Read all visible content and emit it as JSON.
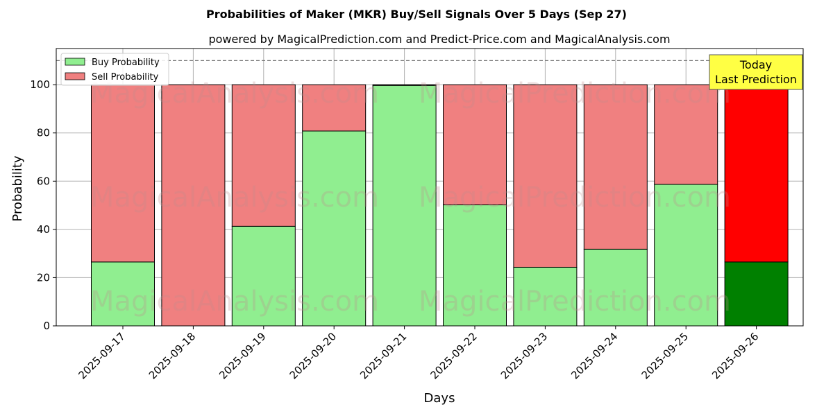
{
  "chart_data": {
    "type": "bar",
    "stacked": true,
    "title": "Probabilities of Maker (MKR) Buy/Sell Signals Over 5 Days (Sep 27)",
    "subtitle": "powered by MagicalPrediction.com and Predict-Price.com and MagicalAnalysis.com",
    "xlabel": "Days",
    "ylabel": "Probability",
    "ylim": [
      0,
      115
    ],
    "yticks": [
      0,
      20,
      40,
      60,
      80,
      100
    ],
    "reference_line": 110,
    "grid": true,
    "legend_position": "top-left",
    "categories": [
      "2025-09-17",
      "2025-09-18",
      "2025-09-19",
      "2025-09-20",
      "2025-09-21",
      "2025-09-22",
      "2025-09-23",
      "2025-09-24",
      "2025-09-25",
      "2025-09-26"
    ],
    "series": [
      {
        "name": "Buy Probability",
        "color": "#90ee90",
        "values": [
          26.5,
          0,
          41.3,
          80.8,
          99.7,
          50.2,
          24.3,
          31.8,
          58.7,
          26.5
        ]
      },
      {
        "name": "Sell Probability",
        "color": "#f08080",
        "values": [
          73.5,
          100,
          58.7,
          19.2,
          0.3,
          49.8,
          75.7,
          68.2,
          41.3,
          73.5
        ]
      }
    ],
    "highlight": {
      "category": "2025-09-26",
      "buy_color": "#008000",
      "sell_color": "#ff0000",
      "label_line1": "Today",
      "label_line2": "Last Prediction",
      "label_bg": "#ffff44"
    },
    "watermarks": [
      "MagicalAnalysis.com",
      "MagicalPrediction.com"
    ]
  }
}
